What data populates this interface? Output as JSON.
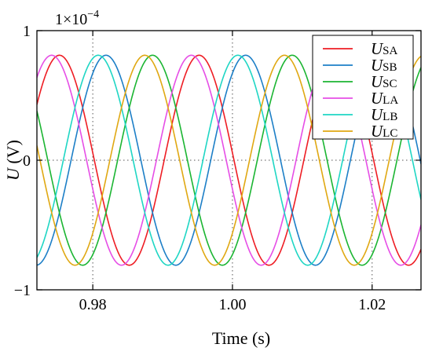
{
  "chart_data": {
    "type": "line",
    "xlabel": "Time (s)",
    "ylabel": "U (V)",
    "ylabel_symbol": "U",
    "ylabel_unit": " (V)",
    "y_multiplier_text": "1×10",
    "y_multiplier_exponent": "−4",
    "xlim": [
      0.972,
      1.027
    ],
    "ylim": [
      -1,
      1
    ],
    "x_ticks": [
      0.98,
      1.0,
      1.02
    ],
    "x_tick_labels": [
      "0.98",
      "1.00",
      "1.02"
    ],
    "y_ticks": [
      -1,
      0,
      1
    ],
    "y_tick_labels": [
      "−1",
      "0",
      "1"
    ],
    "grid": "dotted at major ticks",
    "legend_position": "top-right",
    "frequency_hz": 50,
    "amplitude": 0.81,
    "series": [
      {
        "name": "U_SA",
        "symbol": "U",
        "subscript": "SA",
        "color": "#ee1d24",
        "phase_deg": 176
      },
      {
        "name": "U_SB",
        "symbol": "U",
        "subscript": "SB",
        "color": "#1d7fc7",
        "phase_deg": 56
      },
      {
        "name": "U_SC",
        "symbol": "U",
        "subscript": "SC",
        "color": "#1bb532",
        "phase_deg": -64
      },
      {
        "name": "U_LA",
        "symbol": "U",
        "subscript": "LA",
        "color": "#e64ee6",
        "phase_deg": -164
      },
      {
        "name": "U_LB",
        "symbol": "U",
        "subscript": "LB",
        "color": "#1fd6c4",
        "phase_deg": 76
      },
      {
        "name": "U_LC",
        "symbol": "U",
        "subscript": "LC",
        "color": "#e0a812",
        "phase_deg": -44
      }
    ]
  }
}
